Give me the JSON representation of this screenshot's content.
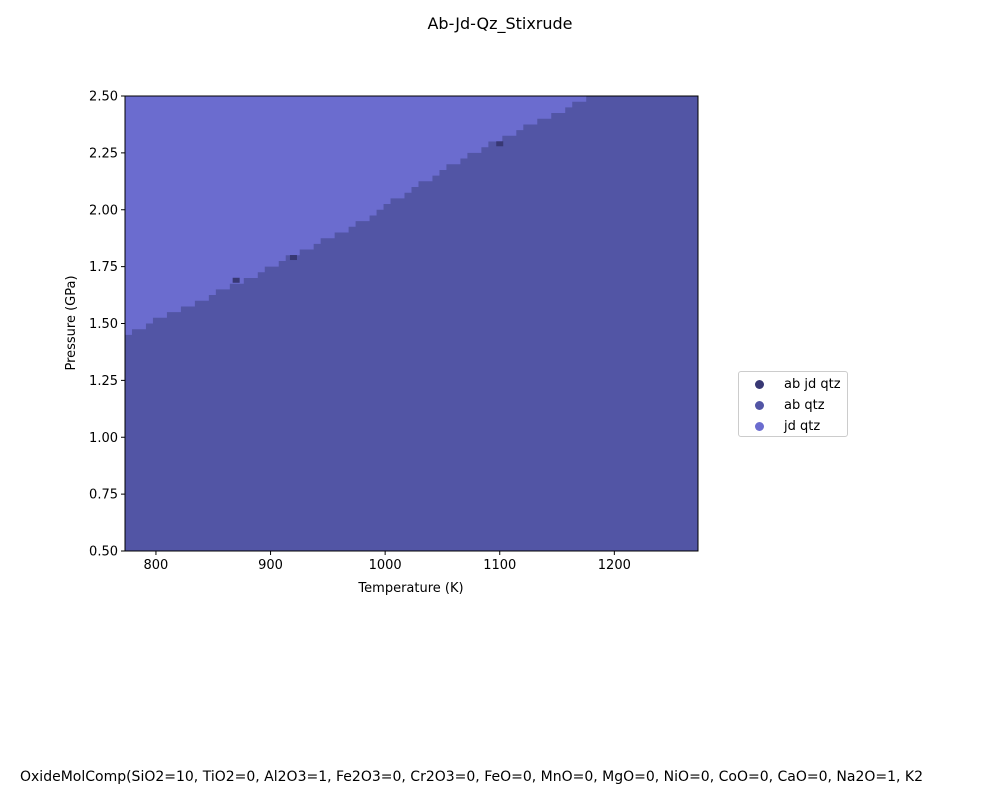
{
  "chart_data": {
    "type": "heatmap",
    "title": "Ab-Jd-Qz_Stixrude",
    "xlabel": "Temperature (K)",
    "ylabel": "Pressure (GPa)",
    "xlim": [
      773,
      1273
    ],
    "ylim": [
      0.5,
      2.5
    ],
    "x_ticks": [
      "800",
      "900",
      "1000",
      "1100",
      "1200"
    ],
    "y_ticks": [
      "0.50",
      "0.75",
      "1.00",
      "1.25",
      "1.50",
      "1.75",
      "2.00",
      "2.25",
      "2.50"
    ],
    "grid": false,
    "legend_position": "right",
    "phases": [
      {
        "name": "ab jd qtz",
        "color": "#383874"
      },
      {
        "name": "ab qtz",
        "color": "#5255a5"
      },
      {
        "name": "jd qtz",
        "color": "#6b6ccf"
      }
    ],
    "boundary": {
      "description": "jd qtz above line, ab qtz below",
      "temperature": [
        773,
        873,
        973,
        1073,
        1180,
        1273
      ],
      "pressure": [
        1.45,
        1.68,
        1.93,
        2.24,
        2.5,
        2.5
      ]
    },
    "coexistence_points": [
      {
        "temperature": 870,
        "pressure": 1.69
      },
      {
        "temperature": 920,
        "pressure": 1.79
      },
      {
        "temperature": 1100,
        "pressure": 2.29
      }
    ]
  },
  "footer": {
    "text": "OxideMolComp(SiO2=10, TiO2=0, Al2O3=1, Fe2O3=0, Cr2O3=0, FeO=0, MnO=0, MgO=0, NiO=0, CoO=0, CaO=0, Na2O=1, K2"
  }
}
